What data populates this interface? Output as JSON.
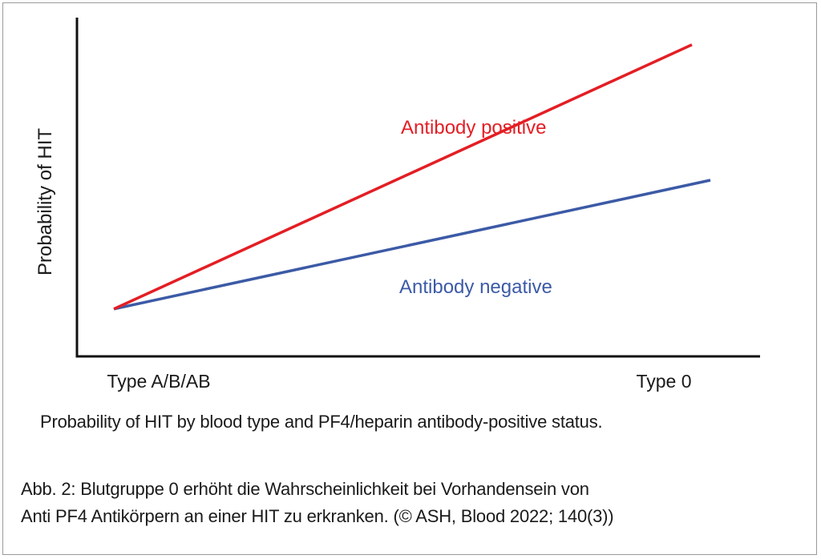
{
  "chart_data": {
    "type": "line",
    "title": "",
    "xlabel": "",
    "ylabel": "Probability of HIT",
    "categories": [
      "Type A/B/AB",
      "Type 0"
    ],
    "y_ticks_shown": false,
    "ylim": [
      0,
      1
    ],
    "grid": false,
    "series": [
      {
        "name": "Antibody positive",
        "color": "#e31e24",
        "values": [
          0.14,
          0.92
        ]
      },
      {
        "name": "Antibody negative",
        "color": "#3c5aa6",
        "values": [
          0.14,
          0.52
        ]
      }
    ]
  },
  "caption": "Probability of HIT by blood type and PF4/heparin antibody-positive status.",
  "figure_note": {
    "line1": "Abb. 2: Blutgruppe 0 erhöht die Wahrscheinlichkeit bei Vorhandensein von",
    "line2": "Anti PF4 Antikörpern an einer HIT zu erkranken. (© ASH, Blood 2022; 140(3))"
  }
}
